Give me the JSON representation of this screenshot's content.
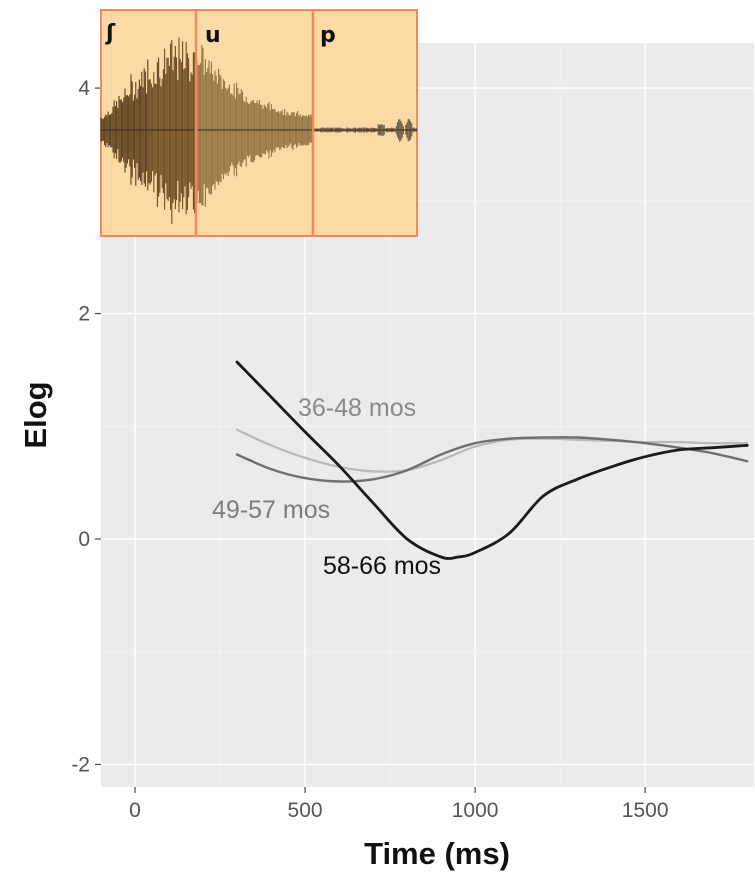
{
  "chart_data": {
    "type": "line",
    "title": "",
    "xlabel": "Time (ms)",
    "ylabel": "Elog",
    "xlim": [
      -100,
      1820
    ],
    "ylim": [
      -2.2,
      4.4
    ],
    "x_ticks": [
      0,
      500,
      1000,
      1500
    ],
    "y_ticks": [
      -2,
      0,
      2,
      4
    ],
    "x_tick_labels": [
      "0",
      "500",
      "1000",
      "1500"
    ],
    "y_tick_labels": [
      "-2",
      "0",
      "2",
      "4"
    ],
    "grid": true,
    "background_color": "#ebebeb",
    "series": [
      {
        "name": "36-48 mos",
        "color": "#b9b9b9",
        "label_color": "#8a8a8a",
        "x": [
          300,
          400,
          500,
          600,
          700,
          800,
          900,
          1000,
          1100,
          1200,
          1300,
          1400,
          1500,
          1600,
          1700,
          1800
        ],
        "y": [
          0.97,
          0.83,
          0.72,
          0.64,
          0.6,
          0.61,
          0.7,
          0.82,
          0.88,
          0.89,
          0.88,
          0.87,
          0.86,
          0.86,
          0.85,
          0.85
        ]
      },
      {
        "name": "49-57 mos",
        "color": "#6f6f6f",
        "label_color": "#7d7d7d",
        "x": [
          300,
          400,
          500,
          600,
          700,
          800,
          900,
          1000,
          1100,
          1200,
          1300,
          1400,
          1500,
          1600,
          1700,
          1800
        ],
        "y": [
          0.75,
          0.62,
          0.54,
          0.51,
          0.53,
          0.61,
          0.75,
          0.85,
          0.89,
          0.9,
          0.9,
          0.88,
          0.85,
          0.81,
          0.76,
          0.69
        ]
      },
      {
        "name": "58-66 mos",
        "color": "#1a1a1a",
        "label_color": "#111111",
        "x": [
          300,
          400,
          500,
          600,
          700,
          800,
          900,
          950,
          1000,
          1100,
          1200,
          1300,
          1400,
          1500,
          1600,
          1700,
          1800
        ],
        "y": [
          1.57,
          1.26,
          0.95,
          0.65,
          0.32,
          0.0,
          -0.16,
          -0.16,
          -0.12,
          0.05,
          0.38,
          0.53,
          0.64,
          0.73,
          0.79,
          0.81,
          0.83
        ]
      }
    ],
    "inset": {
      "type": "waveform",
      "background_color": "#fdd9a5",
      "boundary_color": "#f08a5d",
      "segments": [
        "ʃ",
        "u",
        "p"
      ]
    }
  }
}
